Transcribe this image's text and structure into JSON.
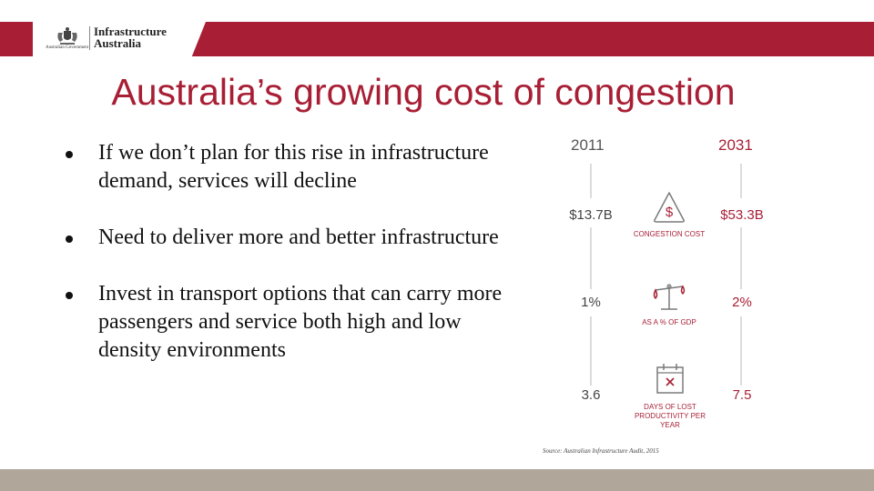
{
  "header": {
    "gov_label": "Australian Government",
    "org_line1": "Infrastructure",
    "org_line2": "Australia",
    "brand_color": "#a81f35"
  },
  "slide": {
    "title": "Australia’s growing cost of congestion",
    "bullets": [
      "If we don’t plan for this rise in infrastructure demand, services will decline",
      "Need to deliver more and better infrastructure",
      "Invest in transport options that can carry more passengers and service both high and low density environments"
    ]
  },
  "infographic": {
    "year_left": "2011",
    "year_right": "2031",
    "metrics": [
      {
        "left": "$13.7B",
        "right": "$53.3B",
        "label": "CONGESTION COST",
        "icon": "dollar-warning-icon"
      },
      {
        "left": "1%",
        "right": "2%",
        "label": "AS A % OF GDP",
        "icon": "scales-icon"
      },
      {
        "left": "3.6",
        "right": "7.5",
        "label": "DAYS OF LOST PRODUCTIVITY PER YEAR",
        "icon": "calendar-x-icon"
      }
    ],
    "source": "Source: Australian Infrastructure Audit, 2015"
  }
}
